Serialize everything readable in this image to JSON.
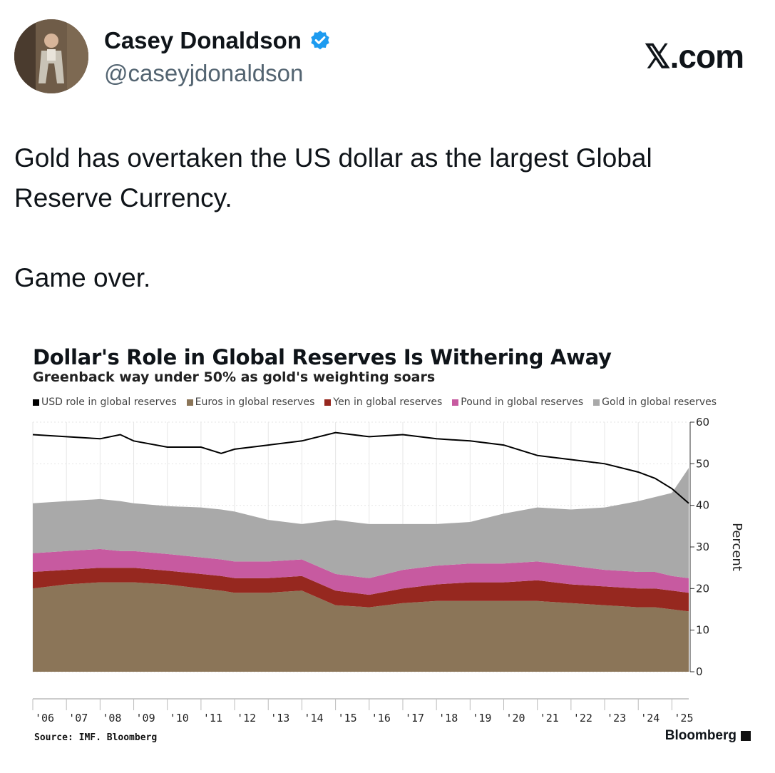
{
  "tweet": {
    "author_name": "Casey Donaldson",
    "handle": "@caseyjdonaldson",
    "brand": "𝕏.com",
    "text_line1": "Gold has overtaken the US dollar as the largest Global Reserve Currency.",
    "text_line2": "Game over."
  },
  "icons": {
    "avatar": "avatar-photo",
    "verified": "verified-badge-icon",
    "bloomberg_mark": "bloomberg-terminal-icon"
  },
  "colors": {
    "verified": "#1d9bf0",
    "usd": "#000000",
    "euro": "#8b7558",
    "yen": "#96281f",
    "pound": "#c75aa0",
    "gold": "#a9a9a9"
  },
  "chart_data": {
    "type": "area",
    "title": "Dollar's Role in Global Reserves Is Withering Away",
    "subtitle": "Greenback way under 50% as gold's weighting soars",
    "ylabel": "Percent",
    "ylim": [
      0,
      60
    ],
    "yticks": [
      "0",
      "10",
      "20",
      "30",
      "40",
      "50",
      "60"
    ],
    "x_tick_labels": [
      "'06",
      "'07",
      "'08",
      "'09",
      "'10",
      "'11",
      "'12",
      "'13",
      "'14",
      "'15",
      "'16",
      "'17",
      "'18",
      "'19",
      "'20",
      "'21",
      "'22",
      "'23",
      "'24",
      "'25"
    ],
    "x": [
      2006.0,
      2007.0,
      2008.0,
      2008.6,
      2009.0,
      2010.0,
      2011.0,
      2011.6,
      2012.0,
      2013.0,
      2014.0,
      2015.0,
      2016.0,
      2017.0,
      2018.0,
      2019.0,
      2020.0,
      2021.0,
      2022.0,
      2023.0,
      2024.0,
      2024.5,
      2025.0,
      2025.5
    ],
    "stacked": true,
    "series": [
      {
        "name": "Euros in global reserves",
        "values": [
          20,
          21,
          21.5,
          21.5,
          21.5,
          21,
          20,
          19.5,
          19,
          19,
          19.5,
          16,
          15.5,
          16.5,
          17,
          17,
          17,
          17,
          16.5,
          16,
          15.5,
          15.5,
          15,
          14.5
        ]
      },
      {
        "name": "Yen in global reserves",
        "values": [
          4,
          3.5,
          3.5,
          3.5,
          3.5,
          3.3,
          3.5,
          3.5,
          3.5,
          3.5,
          3.5,
          3.5,
          3,
          3.5,
          4,
          4.5,
          4.5,
          5,
          4.5,
          4.5,
          4.5,
          4.5,
          4.5,
          4.5
        ]
      },
      {
        "name": "Pound in global reserves",
        "values": [
          4.5,
          4.5,
          4.5,
          4,
          4,
          4,
          4,
          4,
          4,
          4,
          4,
          4,
          4,
          4.5,
          4.5,
          4.5,
          4.5,
          4.5,
          4.5,
          4,
          4,
          4,
          3.5,
          3.5
        ]
      },
      {
        "name": "Gold in global reserves",
        "values": [
          12,
          12,
          12,
          12,
          11.5,
          11.5,
          12,
          12,
          12,
          10,
          8.5,
          13,
          13,
          11,
          10,
          10,
          12,
          13,
          13.5,
          15,
          17,
          18,
          20,
          26.5
        ]
      }
    ],
    "line_series": {
      "name": "USD role in global reserves",
      "values": [
        57,
        56.5,
        56,
        57,
        55.5,
        54,
        54,
        52.5,
        53.5,
        54.5,
        55.5,
        57.5,
        56.5,
        57,
        56,
        55.5,
        54.5,
        52,
        51,
        50,
        48,
        46.5,
        44,
        40.5
      ]
    },
    "source": "Source: IMF. Bloomberg",
    "logo": "Bloomberg"
  }
}
